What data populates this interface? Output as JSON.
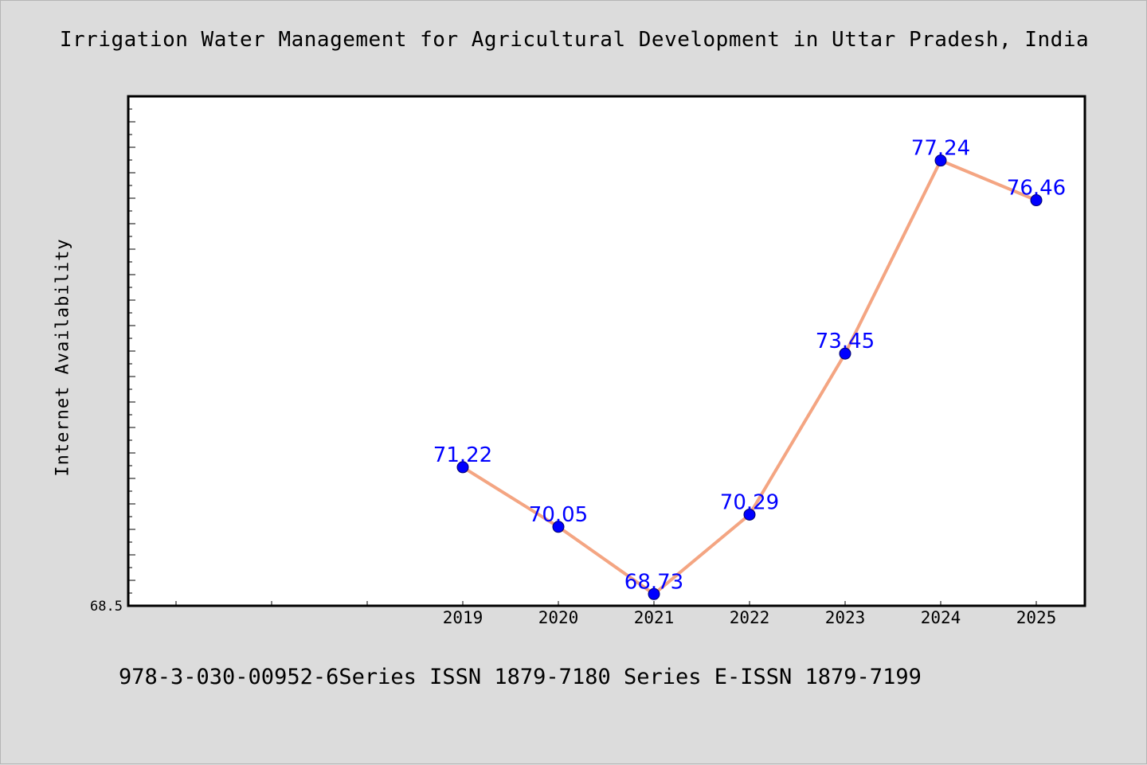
{
  "chart_data": {
    "type": "line",
    "title": "Irrigation Water Management for Agricultural Development in Uttar Pradesh, India",
    "xlabel": "",
    "ylabel": "Internet Availability",
    "categories": [
      "2019",
      "2020",
      "2021",
      "2022",
      "2023",
      "2024",
      "2025"
    ],
    "series": [
      {
        "values": [
          71.22,
          70.05,
          68.73,
          70.29,
          73.45,
          77.24,
          76.46
        ],
        "data_labels": [
          "71.22",
          "70.05",
          "68.73",
          "70.29",
          "73.45",
          "77.24",
          "76.46"
        ],
        "line_color": "#f4a582",
        "marker_color": "#0000ff",
        "label_color": "#0000ff"
      }
    ],
    "y_tick_labels": [
      "68.5"
    ],
    "ylim": [
      68.5,
      78.5
    ],
    "grid": false,
    "legend": "none"
  },
  "footer": {
    "text": "978-3-030-00952-6Series ISSN 1879-7180 Series E-ISSN 1879-7199"
  },
  "colors": {
    "page_background": "#dcdcdc",
    "plot_background": "#ffffff",
    "axis": "#000000"
  }
}
